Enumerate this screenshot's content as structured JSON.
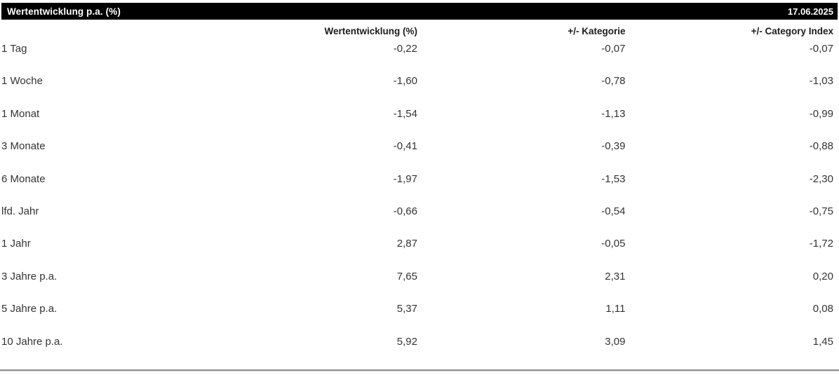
{
  "header": {
    "title": "Wertentwicklung p.a. (%)",
    "date": "17.06.2025"
  },
  "table": {
    "columns": {
      "label": "",
      "performance": "Wertentwicklung (%)",
      "category": "+/- Kategorie",
      "category_index": "+/- Category Index"
    },
    "rows": [
      {
        "label": "1 Tag",
        "performance": "-0,22",
        "category": "-0,07",
        "category_index": "-0,07"
      },
      {
        "label": "1 Woche",
        "performance": "-1,60",
        "category": "-0,78",
        "category_index": "-1,03"
      },
      {
        "label": "1 Monat",
        "performance": "-1,54",
        "category": "-1,13",
        "category_index": "-0,99"
      },
      {
        "label": "3 Monate",
        "performance": "-0,41",
        "category": "-0,39",
        "category_index": "-0,88"
      },
      {
        "label": "6 Monate",
        "performance": "-1,97",
        "category": "-1,53",
        "category_index": "-2,30"
      },
      {
        "label": "lfd. Jahr",
        "performance": "-0,66",
        "category": "-0,54",
        "category_index": "-0,75"
      },
      {
        "label": "1 Jahr",
        "performance": "2,87",
        "category": "-0,05",
        "category_index": "-1,72"
      },
      {
        "label": "3 Jahre p.a.",
        "performance": "7,65",
        "category": "2,31",
        "category_index": "0,20"
      },
      {
        "label": "5 Jahre p.a.",
        "performance": "5,37",
        "category": "1,11",
        "category_index": "0,08"
      },
      {
        "label": "10 Jahre p.a.",
        "performance": "5,92",
        "category": "3,09",
        "category_index": "1,45"
      }
    ]
  },
  "colors": {
    "header_bg": "#000000",
    "header_text": "#ffffff",
    "body_text": "#333333",
    "bottom_rule": "#8f8f8f"
  }
}
